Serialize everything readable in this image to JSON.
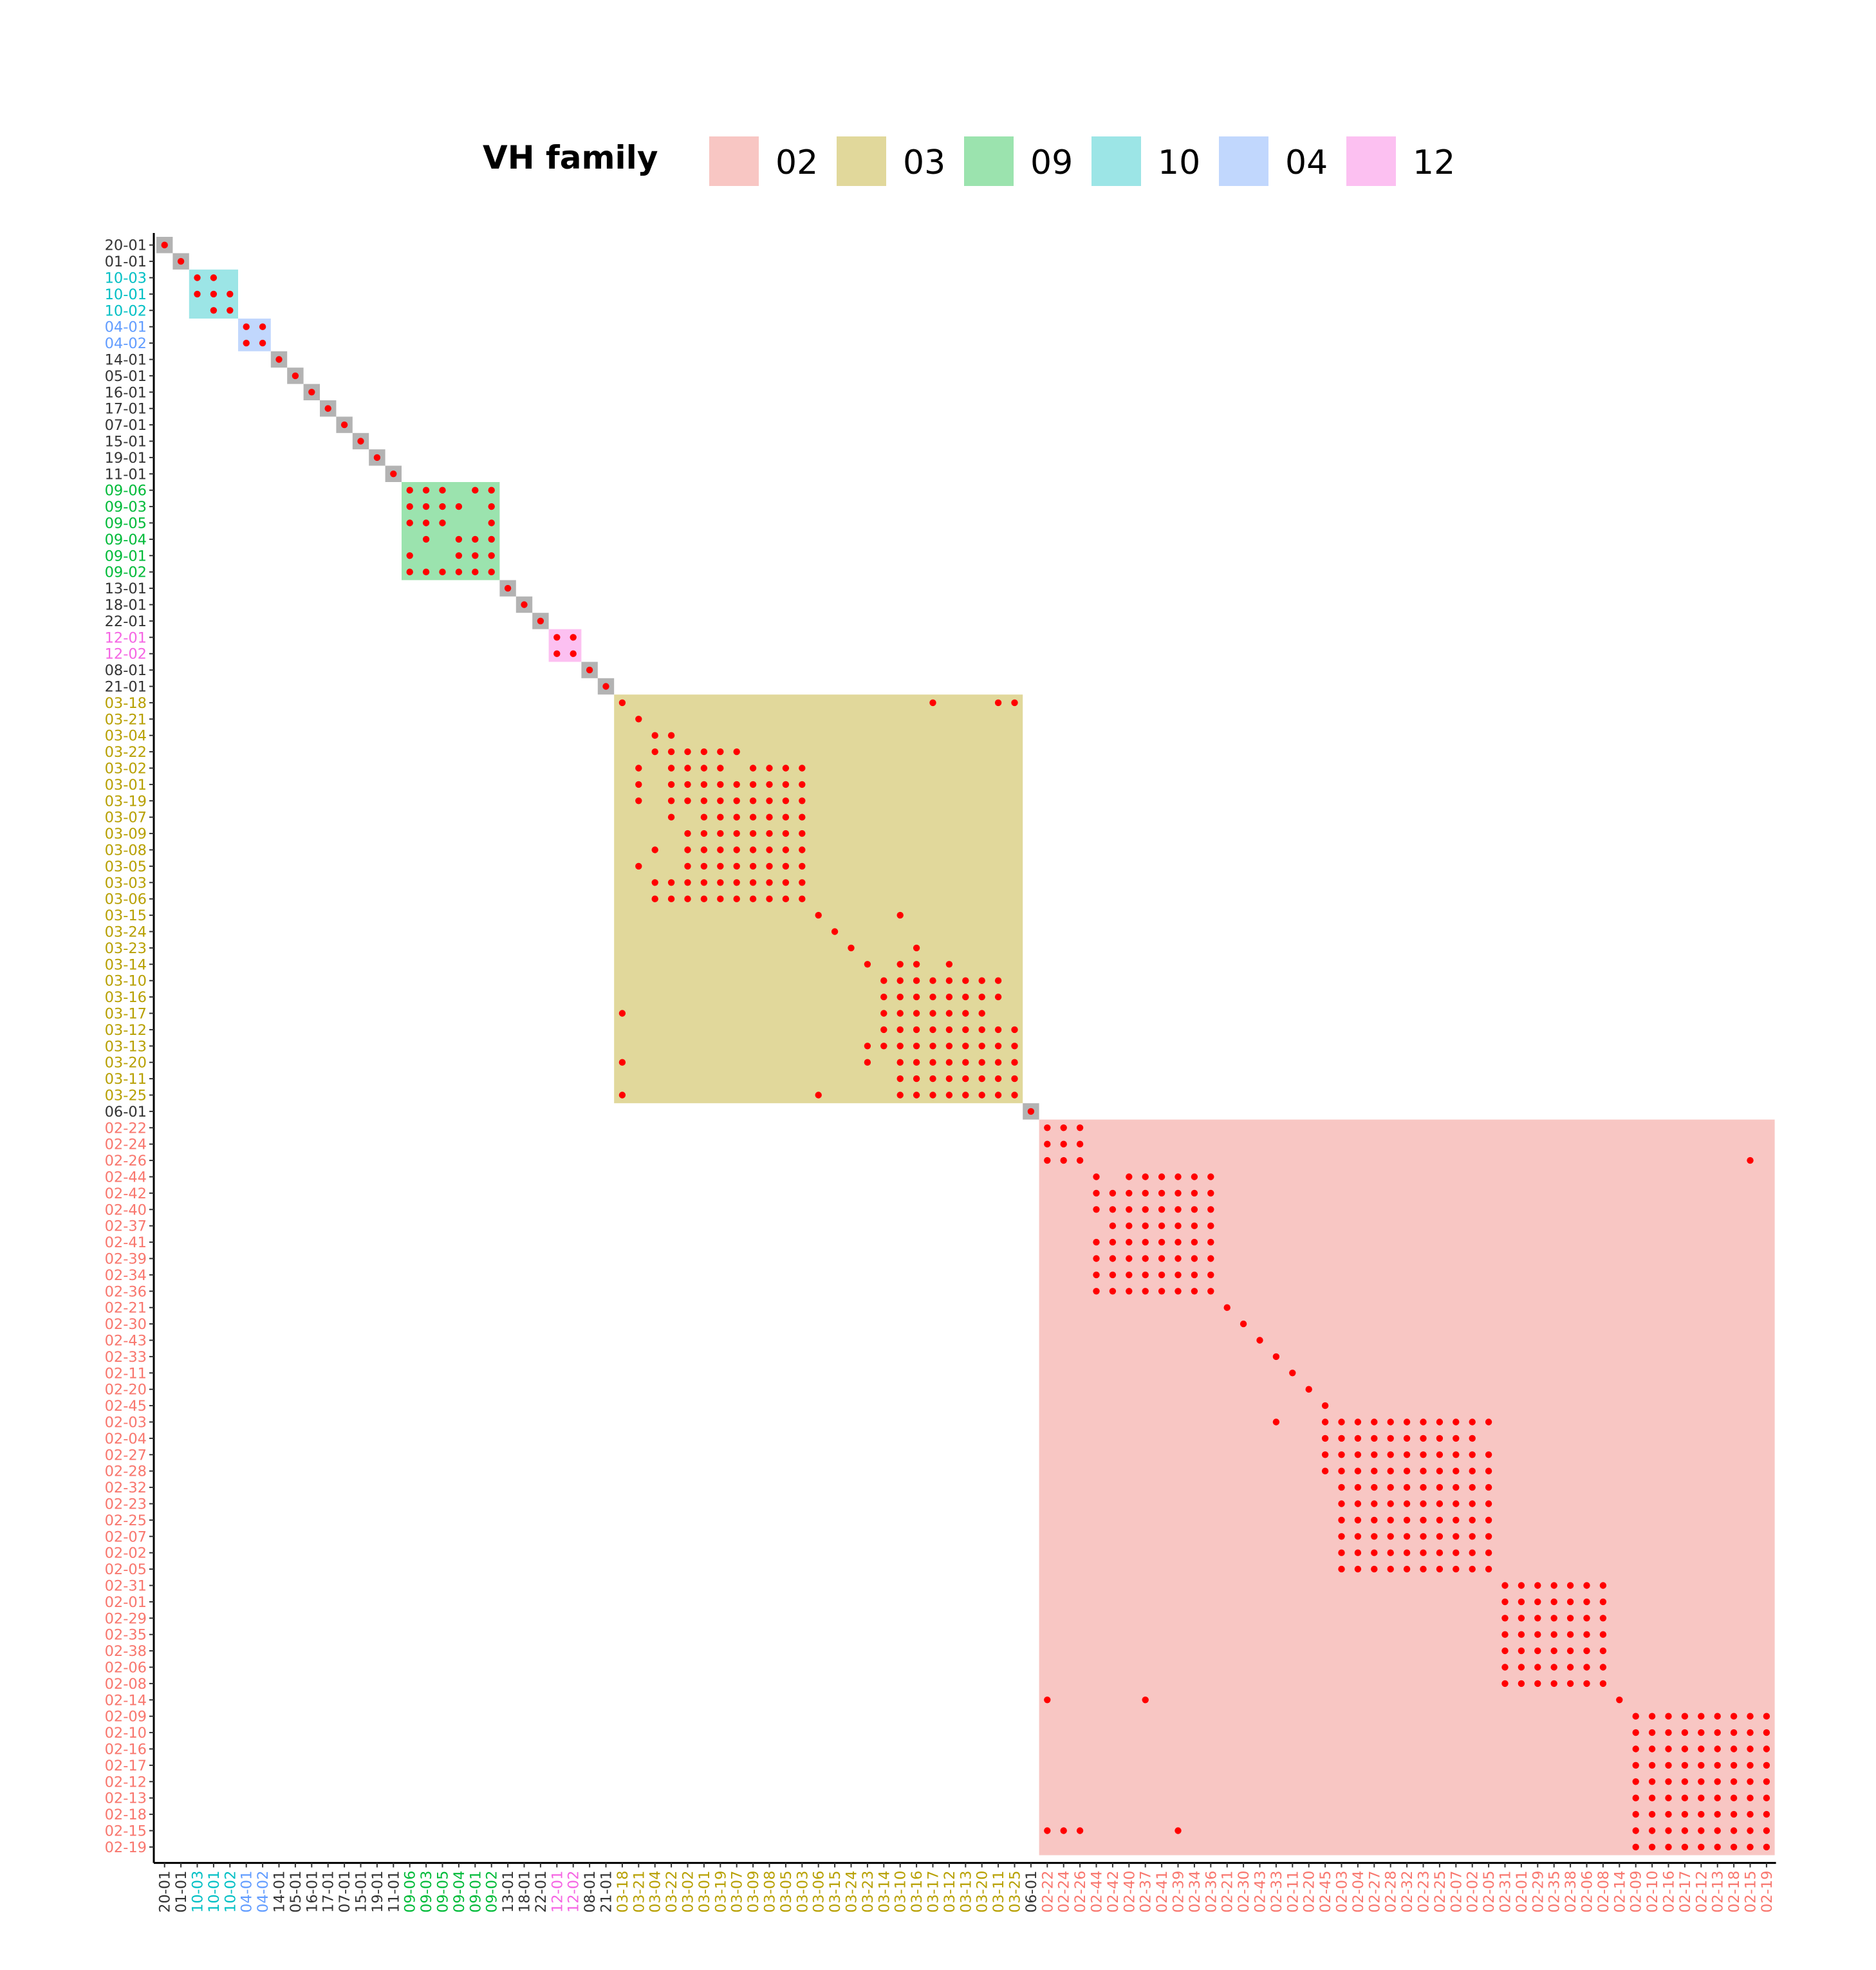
{
  "chart_data": {
    "type": "heatmap",
    "legend": {
      "title": "VH family",
      "position": "top",
      "entries": [
        {
          "label": "02",
          "color": "#F8C6C3"
        },
        {
          "label": "03",
          "color": "#E1D89B"
        },
        {
          "label": "09",
          "color": "#9BE3AE"
        },
        {
          "label": "10",
          "color": "#9CE5E6"
        },
        {
          "label": "04",
          "color": "#C1D7FD"
        },
        {
          "label": "12",
          "color": "#FCC0F1"
        }
      ]
    },
    "label_colors": {
      "02": "#F8766D",
      "03": "#B79F00",
      "09": "#00BA38",
      "10": "#00BFC4",
      "04": "#619CFF",
      "12": "#F564E3",
      "other": "#333333"
    },
    "singleton_fill": "#B3B3B3",
    "dot_color": "#FF0000",
    "xlabel": "",
    "ylabel": "",
    "labels": [
      "20-01",
      "01-01",
      "10-03",
      "10-01",
      "10-02",
      "04-01",
      "04-02",
      "14-01",
      "05-01",
      "16-01",
      "17-01",
      "07-01",
      "15-01",
      "19-01",
      "11-01",
      "09-06",
      "09-03",
      "09-05",
      "09-04",
      "09-01",
      "09-02",
      "13-01",
      "18-01",
      "22-01",
      "12-01",
      "12-02",
      "08-01",
      "21-01",
      "03-18",
      "03-21",
      "03-04",
      "03-22",
      "03-02",
      "03-01",
      "03-19",
      "03-07",
      "03-09",
      "03-08",
      "03-05",
      "03-03",
      "03-06",
      "03-15",
      "03-24",
      "03-23",
      "03-14",
      "03-10",
      "03-16",
      "03-17",
      "03-12",
      "03-13",
      "03-20",
      "03-11",
      "03-25",
      "06-01",
      "02-22",
      "02-24",
      "02-26",
      "02-44",
      "02-42",
      "02-40",
      "02-37",
      "02-41",
      "02-39",
      "02-34",
      "02-36",
      "02-21",
      "02-30",
      "02-43",
      "02-33",
      "02-11",
      "02-20",
      "02-45",
      "02-03",
      "02-04",
      "02-27",
      "02-28",
      "02-32",
      "02-23",
      "02-25",
      "02-07",
      "02-02",
      "02-05",
      "02-31",
      "02-01",
      "02-29",
      "02-35",
      "02-38",
      "02-06",
      "02-08",
      "02-14",
      "02-09",
      "02-10",
      "02-16",
      "02-17",
      "02-12",
      "02-13",
      "02-18",
      "02-15",
      "02-19"
    ],
    "family_blocks": [
      {
        "family": "10",
        "start": "10-03",
        "end": "10-02"
      },
      {
        "family": "04",
        "start": "04-01",
        "end": "04-02"
      },
      {
        "family": "09",
        "start": "09-06",
        "end": "09-02"
      },
      {
        "family": "12",
        "start": "12-01",
        "end": "12-02"
      },
      {
        "family": "03",
        "start": "03-18",
        "end": "03-25"
      },
      {
        "family": "02",
        "start": "02-22",
        "end": "02-19"
      }
    ],
    "dots": {
      "20-01": [
        "20-01"
      ],
      "01-01": [
        "01-01"
      ],
      "10-03": [
        "10-03",
        "10-01"
      ],
      "10-01": [
        "10-03",
        "10-01",
        "10-02"
      ],
      "10-02": [
        "10-01",
        "10-02"
      ],
      "04-01": [
        "04-01",
        "04-02"
      ],
      "04-02": [
        "04-01",
        "04-02"
      ],
      "14-01": [
        "14-01"
      ],
      "05-01": [
        "05-01"
      ],
      "16-01": [
        "16-01"
      ],
      "17-01": [
        "17-01"
      ],
      "07-01": [
        "07-01"
      ],
      "15-01": [
        "15-01"
      ],
      "19-01": [
        "19-01"
      ],
      "11-01": [
        "11-01"
      ],
      "09-06": [
        "09-06",
        "09-03",
        "09-05",
        "09-01",
        "09-02"
      ],
      "09-03": [
        "09-06",
        "09-03",
        "09-05",
        "09-04",
        "09-02"
      ],
      "09-05": [
        "09-06",
        "09-03",
        "09-05",
        "09-02"
      ],
      "09-04": [
        "09-03",
        "09-04",
        "09-01",
        "09-02"
      ],
      "09-01": [
        "09-06",
        "09-04",
        "09-01",
        "09-02"
      ],
      "09-02": [
        "09-06",
        "09-03",
        "09-05",
        "09-04",
        "09-01",
        "09-02"
      ],
      "13-01": [
        "13-01"
      ],
      "18-01": [
        "18-01"
      ],
      "22-01": [
        "22-01"
      ],
      "12-01": [
        "12-01",
        "12-02"
      ],
      "12-02": [
        "12-01",
        "12-02"
      ],
      "08-01": [
        "08-01"
      ],
      "21-01": [
        "21-01"
      ],
      "03-18": [
        "03-18",
        "03-17",
        "03-11",
        "03-25"
      ],
      "03-21": [
        "03-21"
      ],
      "03-04": [
        "03-04",
        "03-22"
      ],
      "03-22": [
        "03-04",
        "03-22",
        "03-02",
        "03-01",
        "03-19",
        "03-07"
      ],
      "03-02": [
        "03-21",
        "03-22",
        "03-02",
        "03-01",
        "03-19",
        "03-09",
        "03-08",
        "03-05",
        "03-03"
      ],
      "03-01": [
        "03-21",
        "03-22",
        "03-02",
        "03-01",
        "03-19",
        "03-07",
        "03-09",
        "03-08",
        "03-05",
        "03-03"
      ],
      "03-19": [
        "03-21",
        "03-22",
        "03-02",
        "03-01",
        "03-19",
        "03-07",
        "03-09",
        "03-08",
        "03-05",
        "03-03"
      ],
      "03-07": [
        "03-22",
        "03-01",
        "03-19",
        "03-07",
        "03-09",
        "03-08",
        "03-05",
        "03-03"
      ],
      "03-09": [
        "03-02",
        "03-01",
        "03-19",
        "03-07",
        "03-09",
        "03-08",
        "03-05",
        "03-03"
      ],
      "03-08": [
        "03-04",
        "03-02",
        "03-01",
        "03-19",
        "03-07",
        "03-09",
        "03-08",
        "03-05",
        "03-03"
      ],
      "03-05": [
        "03-21",
        "03-02",
        "03-01",
        "03-19",
        "03-07",
        "03-09",
        "03-08",
        "03-05",
        "03-03"
      ],
      "03-03": [
        "03-04",
        "03-22",
        "03-02",
        "03-01",
        "03-19",
        "03-07",
        "03-09",
        "03-08",
        "03-05",
        "03-03"
      ],
      "03-06": [
        "03-04",
        "03-22",
        "03-02",
        "03-01",
        "03-19",
        "03-07",
        "03-09",
        "03-08",
        "03-05",
        "03-03"
      ],
      "03-15": [
        "03-06",
        "03-10"
      ],
      "03-24": [
        "03-15"
      ],
      "03-23": [
        "03-24",
        "03-16"
      ],
      "03-14": [
        "03-23",
        "03-10",
        "03-16",
        "03-12"
      ],
      "03-10": [
        "03-14",
        "03-10",
        "03-16",
        "03-17",
        "03-12",
        "03-13",
        "03-20",
        "03-11"
      ],
      "03-16": [
        "03-14",
        "03-10",
        "03-16",
        "03-17",
        "03-12",
        "03-13",
        "03-20",
        "03-11"
      ],
      "03-17": [
        "03-18",
        "03-14",
        "03-10",
        "03-16",
        "03-17",
        "03-12",
        "03-13",
        "03-20"
      ],
      "03-12": [
        "03-14",
        "03-10",
        "03-16",
        "03-17",
        "03-12",
        "03-13",
        "03-20",
        "03-11",
        "03-25"
      ],
      "03-13": [
        "03-23",
        "03-14",
        "03-10",
        "03-16",
        "03-17",
        "03-12",
        "03-13",
        "03-20",
        "03-11",
        "03-25"
      ],
      "03-20": [
        "03-18",
        "03-23",
        "03-10",
        "03-16",
        "03-17",
        "03-12",
        "03-13",
        "03-20",
        "03-11",
        "03-25"
      ],
      "03-11": [
        "03-10",
        "03-16",
        "03-17",
        "03-12",
        "03-13",
        "03-20",
        "03-11",
        "03-25"
      ],
      "03-25": [
        "03-18",
        "03-06",
        "03-10",
        "03-16",
        "03-17",
        "03-12",
        "03-13",
        "03-20",
        "03-11",
        "03-25"
      ],
      "06-01": [
        "06-01"
      ],
      "02-22": [
        "02-22",
        "02-24",
        "02-26"
      ],
      "02-24": [
        "02-22",
        "02-24",
        "02-26"
      ],
      "02-26": [
        "02-22",
        "02-24",
        "02-26",
        "02-15"
      ],
      "02-44": [
        "02-44",
        "02-40",
        "02-37",
        "02-41",
        "02-39",
        "02-34",
        "02-36"
      ],
      "02-42": [
        "02-44",
        "02-42",
        "02-40",
        "02-37",
        "02-41",
        "02-39",
        "02-34",
        "02-36"
      ],
      "02-40": [
        "02-44",
        "02-42",
        "02-40",
        "02-37",
        "02-41",
        "02-39",
        "02-34",
        "02-36"
      ],
      "02-37": [
        "02-42",
        "02-40",
        "02-37",
        "02-41",
        "02-39",
        "02-34",
        "02-36"
      ],
      "02-41": [
        "02-44",
        "02-42",
        "02-40",
        "02-37",
        "02-41",
        "02-39",
        "02-34",
        "02-36"
      ],
      "02-39": [
        "02-44",
        "02-42",
        "02-40",
        "02-37",
        "02-41",
        "02-39",
        "02-34",
        "02-36"
      ],
      "02-34": [
        "02-44",
        "02-42",
        "02-40",
        "02-37",
        "02-41",
        "02-39",
        "02-34",
        "02-36"
      ],
      "02-36": [
        "02-44",
        "02-42",
        "02-40",
        "02-37",
        "02-41",
        "02-39",
        "02-34",
        "02-36"
      ],
      "02-21": [
        "02-21"
      ],
      "02-30": [
        "02-30"
      ],
      "02-43": [
        "02-43"
      ],
      "02-33": [
        "02-33"
      ],
      "02-11": [
        "02-11"
      ],
      "02-20": [
        "02-20"
      ],
      "02-45": [
        "02-45"
      ],
      "02-03": [
        "02-33",
        "02-45",
        "02-03",
        "02-04",
        "02-27",
        "02-28",
        "02-32",
        "02-23",
        "02-25",
        "02-07",
        "02-02",
        "02-05"
      ],
      "02-04": [
        "02-45",
        "02-03",
        "02-04",
        "02-27",
        "02-28",
        "02-32",
        "02-23",
        "02-25",
        "02-07",
        "02-02"
      ],
      "02-27": [
        "02-45",
        "02-03",
        "02-04",
        "02-27",
        "02-28",
        "02-32",
        "02-23",
        "02-25",
        "02-07",
        "02-02",
        "02-05"
      ],
      "02-28": [
        "02-45",
        "02-03",
        "02-04",
        "02-27",
        "02-28",
        "02-32",
        "02-23",
        "02-25",
        "02-07",
        "02-02",
        "02-05"
      ],
      "02-32": [
        "02-03",
        "02-04",
        "02-27",
        "02-28",
        "02-32",
        "02-23",
        "02-25",
        "02-07",
        "02-02",
        "02-05"
      ],
      "02-23": [
        "02-03",
        "02-04",
        "02-27",
        "02-28",
        "02-32",
        "02-23",
        "02-25",
        "02-07",
        "02-02",
        "02-05"
      ],
      "02-25": [
        "02-03",
        "02-04",
        "02-27",
        "02-28",
        "02-32",
        "02-23",
        "02-25",
        "02-07",
        "02-02",
        "02-05"
      ],
      "02-07": [
        "02-03",
        "02-04",
        "02-27",
        "02-28",
        "02-32",
        "02-23",
        "02-25",
        "02-07",
        "02-02",
        "02-05"
      ],
      "02-02": [
        "02-03",
        "02-04",
        "02-27",
        "02-28",
        "02-32",
        "02-23",
        "02-25",
        "02-07",
        "02-02",
        "02-05"
      ],
      "02-05": [
        "02-03",
        "02-04",
        "02-27",
        "02-28",
        "02-32",
        "02-23",
        "02-25",
        "02-07",
        "02-02",
        "02-05"
      ],
      "02-31": [
        "02-31",
        "02-01",
        "02-29",
        "02-35",
        "02-38",
        "02-06",
        "02-08"
      ],
      "02-01": [
        "02-31",
        "02-01",
        "02-29",
        "02-35",
        "02-38",
        "02-06",
        "02-08"
      ],
      "02-29": [
        "02-31",
        "02-01",
        "02-29",
        "02-35",
        "02-38",
        "02-06",
        "02-08"
      ],
      "02-35": [
        "02-31",
        "02-01",
        "02-29",
        "02-35",
        "02-38",
        "02-06",
        "02-08"
      ],
      "02-38": [
        "02-31",
        "02-01",
        "02-29",
        "02-35",
        "02-38",
        "02-06",
        "02-08"
      ],
      "02-06": [
        "02-31",
        "02-01",
        "02-29",
        "02-35",
        "02-38",
        "02-06",
        "02-08"
      ],
      "02-08": [
        "02-31",
        "02-01",
        "02-29",
        "02-35",
        "02-38",
        "02-06",
        "02-08"
      ],
      "02-14": [
        "02-22",
        "02-37",
        "02-14"
      ],
      "02-09": [
        "02-09",
        "02-10",
        "02-16",
        "02-17",
        "02-12",
        "02-13",
        "02-18",
        "02-15",
        "02-19"
      ],
      "02-10": [
        "02-09",
        "02-10",
        "02-16",
        "02-17",
        "02-12",
        "02-13",
        "02-18",
        "02-15",
        "02-19"
      ],
      "02-16": [
        "02-09",
        "02-10",
        "02-16",
        "02-17",
        "02-12",
        "02-13",
        "02-18",
        "02-15",
        "02-19"
      ],
      "02-17": [
        "02-09",
        "02-10",
        "02-16",
        "02-17",
        "02-12",
        "02-13",
        "02-18",
        "02-15",
        "02-19"
      ],
      "02-12": [
        "02-09",
        "02-10",
        "02-16",
        "02-17",
        "02-12",
        "02-13",
        "02-18",
        "02-15",
        "02-19"
      ],
      "02-13": [
        "02-09",
        "02-10",
        "02-16",
        "02-17",
        "02-12",
        "02-13",
        "02-18",
        "02-15",
        "02-19"
      ],
      "02-18": [
        "02-09",
        "02-10",
        "02-16",
        "02-17",
        "02-12",
        "02-13",
        "02-18",
        "02-15",
        "02-19"
      ],
      "02-15": [
        "02-22",
        "02-24",
        "02-26",
        "02-39",
        "02-09",
        "02-10",
        "02-16",
        "02-17",
        "02-12",
        "02-13",
        "02-18",
        "02-15",
        "02-19"
      ],
      "02-19": [
        "02-09",
        "02-10",
        "02-16",
        "02-17",
        "02-12",
        "02-13",
        "02-18",
        "02-15",
        "02-19"
      ]
    },
    "grid": false
  }
}
